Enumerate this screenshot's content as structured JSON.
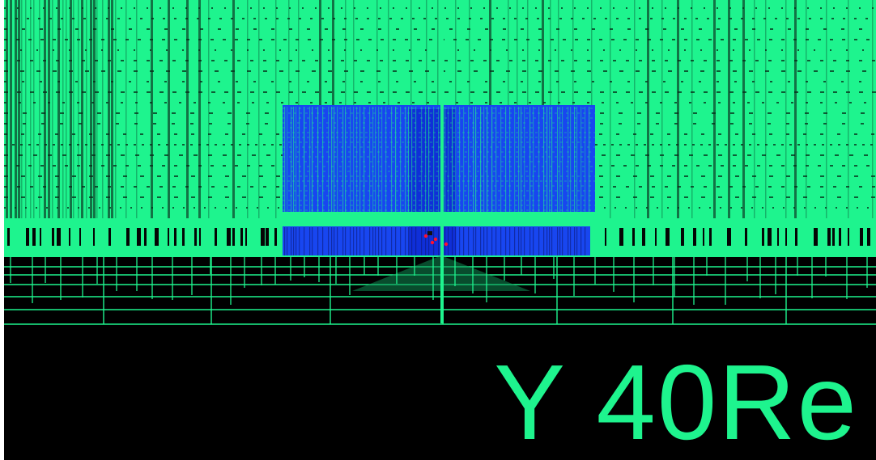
{
  "viewport": {
    "caption": "Y 40Re",
    "colors": {
      "background": "#000000",
      "mesh": "#1ef48e",
      "mesh_dark": "#0f8a52",
      "refined_block": "#1846f0",
      "refined_block_dark": "#0a1fc8",
      "marker": "#ff1030",
      "caption": "#1ef48e"
    }
  }
}
